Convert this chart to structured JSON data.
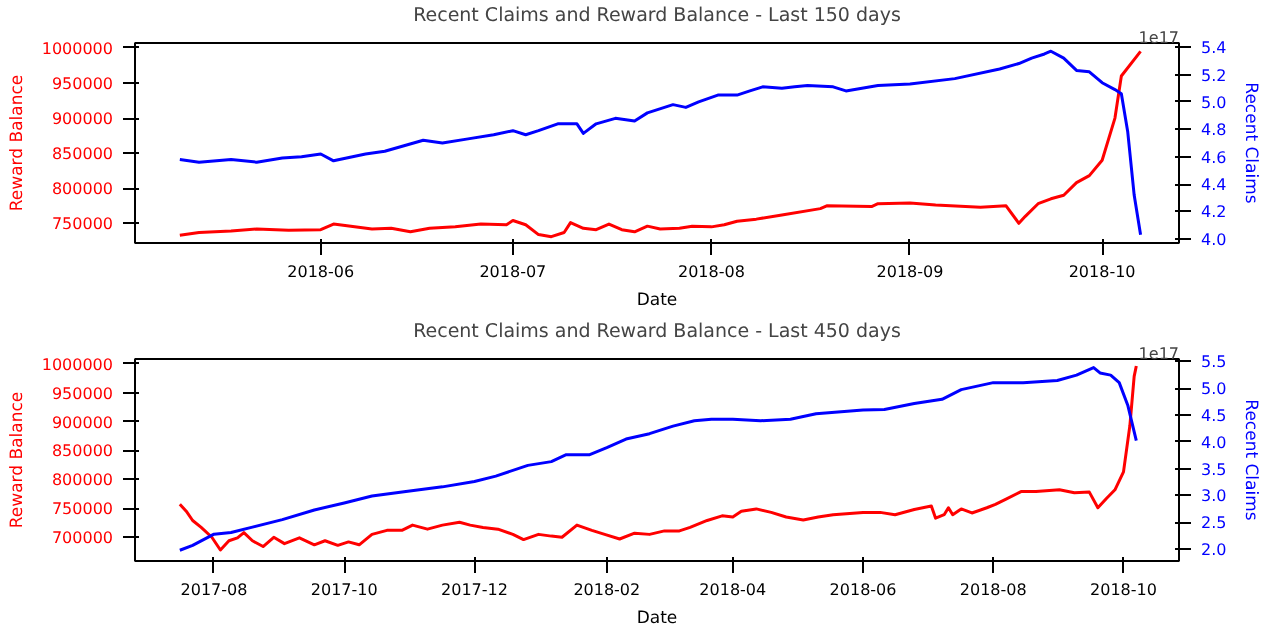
{
  "chart_data": [
    {
      "type": "line",
      "title": "Recent Claims and Reward Balance - Last 150 days",
      "xlabel": "Date",
      "ylabel": "Reward Balance",
      "y2label": "Recent Claims",
      "annotations": [
        "1e17"
      ],
      "grid": false,
      "xlim": [
        "2018-05-03",
        "2018-10-13"
      ],
      "xticks": [
        {
          "value": "2018-06-01",
          "label": "2018-06"
        },
        {
          "value": "2018-07-01",
          "label": "2018-07"
        },
        {
          "value": "2018-08-01",
          "label": "2018-08"
        },
        {
          "value": "2018-09-01",
          "label": "2018-09"
        },
        {
          "value": "2018-10-01",
          "label": "2018-10"
        }
      ],
      "ylim": [
        722000,
        1007000
      ],
      "yticks": [
        750000,
        800000,
        850000,
        900000,
        950000,
        1000000
      ],
      "y2lim": [
        3.97,
        5.43
      ],
      "y2ticks": [
        {
          "value": 4.0,
          "label": "4.0"
        },
        {
          "value": 4.2,
          "label": "4.2"
        },
        {
          "value": 4.4,
          "label": "4.4"
        },
        {
          "value": 4.6,
          "label": "4.6"
        },
        {
          "value": 4.8,
          "label": "4.8"
        },
        {
          "value": 5.0,
          "label": "5.0"
        },
        {
          "value": 5.2,
          "label": "5.2"
        },
        {
          "value": 5.4,
          "label": "5.4"
        }
      ],
      "series": [
        {
          "color": "#ff0000",
          "x": [
            "2018-05-10",
            "2018-05-13",
            "2018-05-18",
            "2018-05-22",
            "2018-05-27",
            "2018-06-01",
            "2018-06-03",
            "2018-06-09",
            "2018-06-12",
            "2018-06-15",
            "2018-06-18",
            "2018-06-22",
            "2018-06-26",
            "2018-06-30",
            "2018-07-01",
            "2018-07-03",
            "2018-07-05",
            "2018-07-07",
            "2018-07-09",
            "2018-07-10",
            "2018-07-12",
            "2018-07-14",
            "2018-07-16",
            "2018-07-18",
            "2018-07-20",
            "2018-07-22",
            "2018-07-24",
            "2018-07-27",
            "2018-07-29",
            "2018-08-01",
            "2018-08-03",
            "2018-08-05",
            "2018-08-08",
            "2018-08-12",
            "2018-08-18",
            "2018-08-19",
            "2018-08-26",
            "2018-08-27",
            "2018-09-01",
            "2018-09-05",
            "2018-09-12",
            "2018-09-16",
            "2018-09-18",
            "2018-09-19",
            "2018-09-21",
            "2018-09-23",
            "2018-09-25",
            "2018-09-27",
            "2018-09-29",
            "2018-10-01",
            "2018-10-03",
            "2018-10-04",
            "2018-10-07"
          ],
          "values": [
            733000,
            737000,
            739000,
            742000,
            740000,
            741000,
            749000,
            742000,
            743000,
            738000,
            743000,
            745000,
            749000,
            748000,
            754000,
            748000,
            734000,
            731000,
            737000,
            751000,
            743000,
            741000,
            749000,
            741000,
            738000,
            746000,
            742000,
            743000,
            746000,
            745000,
            748000,
            753000,
            756000,
            762000,
            771000,
            775000,
            774000,
            778000,
            779000,
            776000,
            773000,
            775000,
            750000,
            760000,
            778000,
            785000,
            790000,
            808000,
            818000,
            840000,
            900000,
            960000,
            995000
          ]
        },
        {
          "color": "#0000ff",
          "axis": "y2",
          "x": [
            "2018-05-10",
            "2018-05-13",
            "2018-05-18",
            "2018-05-22",
            "2018-05-26",
            "2018-05-29",
            "2018-06-01",
            "2018-06-03",
            "2018-06-08",
            "2018-06-11",
            "2018-06-14",
            "2018-06-17",
            "2018-06-20",
            "2018-06-24",
            "2018-06-28",
            "2018-07-01",
            "2018-07-03",
            "2018-07-05",
            "2018-07-08",
            "2018-07-11",
            "2018-07-12",
            "2018-07-14",
            "2018-07-17",
            "2018-07-20",
            "2018-07-22",
            "2018-07-26",
            "2018-07-28",
            "2018-07-30",
            "2018-08-02",
            "2018-08-05",
            "2018-08-07",
            "2018-08-09",
            "2018-08-12",
            "2018-08-14",
            "2018-08-16",
            "2018-08-20",
            "2018-08-22",
            "2018-08-27",
            "2018-09-01",
            "2018-09-08",
            "2018-09-15",
            "2018-09-18",
            "2018-09-20",
            "2018-09-22",
            "2018-09-23",
            "2018-09-25",
            "2018-09-27",
            "2018-09-29",
            "2018-10-01",
            "2018-10-03",
            "2018-10-04",
            "2018-10-05",
            "2018-10-06",
            "2018-10-07"
          ],
          "values": [
            4.58,
            4.56,
            4.58,
            4.56,
            4.59,
            4.6,
            4.62,
            4.57,
            4.62,
            4.64,
            4.68,
            4.72,
            4.7,
            4.73,
            4.76,
            4.79,
            4.76,
            4.79,
            4.84,
            4.84,
            4.77,
            4.84,
            4.88,
            4.86,
            4.92,
            4.98,
            4.96,
            5.0,
            5.05,
            5.05,
            5.08,
            5.11,
            5.1,
            5.11,
            5.12,
            5.11,
            5.08,
            5.12,
            5.13,
            5.17,
            5.24,
            5.28,
            5.32,
            5.35,
            5.37,
            5.32,
            5.23,
            5.22,
            5.14,
            5.09,
            5.06,
            4.78,
            4.32,
            4.03
          ]
        }
      ]
    },
    {
      "type": "line",
      "title": "Recent Claims and Reward Balance - Last 450 days",
      "xlabel": "Date",
      "ylabel": "Reward Balance",
      "y2label": "Recent Claims",
      "annotations": [
        "1e17"
      ],
      "grid": false,
      "xlim": [
        "2017-06-25",
        "2018-10-27"
      ],
      "xticks": [
        {
          "value": "2017-08-01",
          "label": "2017-08"
        },
        {
          "value": "2017-10-01",
          "label": "2017-10"
        },
        {
          "value": "2017-12-01",
          "label": "2017-12"
        },
        {
          "value": "2018-02-01",
          "label": "2018-02"
        },
        {
          "value": "2018-04-01",
          "label": "2018-04"
        },
        {
          "value": "2018-06-01",
          "label": "2018-06"
        },
        {
          "value": "2018-08-01",
          "label": "2018-08"
        },
        {
          "value": "2018-10-01",
          "label": "2018-10"
        }
      ],
      "ylim": [
        659000,
        1008000
      ],
      "yticks": [
        700000,
        750000,
        800000,
        850000,
        900000,
        950000,
        1000000
      ],
      "y2lim": [
        1.78,
        5.54
      ],
      "y2ticks": [
        {
          "value": 2.0,
          "label": "2.0"
        },
        {
          "value": 2.5,
          "label": "2.5"
        },
        {
          "value": 3.0,
          "label": "3.0"
        },
        {
          "value": 3.5,
          "label": "3.5"
        },
        {
          "value": 4.0,
          "label": "4.0"
        },
        {
          "value": 4.5,
          "label": "4.5"
        },
        {
          "value": 5.0,
          "label": "5.0"
        },
        {
          "value": 5.5,
          "label": "5.5"
        }
      ],
      "series": [
        {
          "color": "#ff0000",
          "x": [
            "2017-07-16",
            "2017-07-19",
            "2017-07-22",
            "2017-07-26",
            "2017-07-31",
            "2017-08-04",
            "2017-08-08",
            "2017-08-12",
            "2017-08-15",
            "2017-08-19",
            "2017-08-24",
            "2017-08-29",
            "2017-09-03",
            "2017-09-10",
            "2017-09-17",
            "2017-09-22",
            "2017-09-28",
            "2017-10-03",
            "2017-10-08",
            "2017-10-14",
            "2017-10-21",
            "2017-10-28",
            "2017-11-02",
            "2017-11-09",
            "2017-11-16",
            "2017-11-24",
            "2017-11-29",
            "2017-12-05",
            "2017-12-12",
            "2017-12-19",
            "2017-12-24",
            "2017-12-31",
            "2018-01-06",
            "2018-01-11",
            "2018-01-18",
            "2018-01-25",
            "2018-01-31",
            "2018-02-07",
            "2018-02-14",
            "2018-02-21",
            "2018-02-28",
            "2018-03-07",
            "2018-03-12",
            "2018-03-20",
            "2018-03-27",
            "2018-04-01",
            "2018-04-05",
            "2018-04-12",
            "2018-04-19",
            "2018-04-26",
            "2018-05-04",
            "2018-05-11",
            "2018-05-18",
            "2018-06-01",
            "2018-06-09",
            "2018-06-16",
            "2018-06-25",
            "2018-07-03",
            "2018-07-05",
            "2018-07-09",
            "2018-07-11",
            "2018-07-13",
            "2018-07-17",
            "2018-07-22",
            "2018-07-29",
            "2018-08-02",
            "2018-08-07",
            "2018-08-14",
            "2018-08-21",
            "2018-09-01",
            "2018-09-08",
            "2018-09-15",
            "2018-09-19",
            "2018-09-23",
            "2018-09-27",
            "2018-10-01",
            "2018-10-04",
            "2018-10-06",
            "2018-10-07"
          ],
          "values": [
            757000,
            745000,
            729000,
            717000,
            700000,
            678000,
            694000,
            699000,
            708000,
            694000,
            684000,
            700000,
            689000,
            699000,
            687000,
            694000,
            686000,
            692000,
            687000,
            705000,
            712000,
            712000,
            721000,
            714000,
            721000,
            726000,
            721000,
            717000,
            714000,
            705000,
            696000,
            705000,
            702000,
            700000,
            721000,
            712000,
            705000,
            697000,
            707000,
            705000,
            711000,
            711000,
            717000,
            729000,
            737000,
            735000,
            745000,
            749000,
            743000,
            735000,
            730000,
            735000,
            739000,
            743000,
            743000,
            739000,
            748000,
            754000,
            733000,
            739000,
            751000,
            739000,
            749000,
            742000,
            751000,
            757000,
            766000,
            779000,
            779000,
            782000,
            777000,
            778000,
            751000,
            767000,
            782000,
            813000,
            893000,
            978000,
            996000
          ]
        },
        {
          "color": "#0000ff",
          "axis": "y2",
          "x": [
            "2017-07-16",
            "2017-07-22",
            "2017-08-01",
            "2017-08-09",
            "2017-08-19",
            "2017-09-02",
            "2017-09-17",
            "2017-10-01",
            "2017-10-14",
            "2017-10-29",
            "2017-11-16",
            "2017-12-01",
            "2017-12-11",
            "2017-12-26",
            "2018-01-06",
            "2018-01-13",
            "2018-01-24",
            "2018-02-01",
            "2018-02-10",
            "2018-02-21",
            "2018-03-04",
            "2018-03-14",
            "2018-03-22",
            "2018-04-01",
            "2018-04-14",
            "2018-04-28",
            "2018-05-10",
            "2018-06-01",
            "2018-06-11",
            "2018-06-25",
            "2018-07-08",
            "2018-07-17",
            "2018-08-01",
            "2018-08-15",
            "2018-08-31",
            "2018-09-09",
            "2018-09-17",
            "2018-09-20",
            "2018-09-25",
            "2018-09-29",
            "2018-10-03",
            "2018-10-07"
          ],
          "values": [
            1.98,
            2.07,
            2.28,
            2.31,
            2.41,
            2.55,
            2.73,
            2.86,
            2.99,
            3.07,
            3.16,
            3.26,
            3.36,
            3.56,
            3.63,
            3.76,
            3.76,
            3.89,
            4.05,
            4.15,
            4.29,
            4.39,
            4.42,
            4.42,
            4.39,
            4.42,
            4.52,
            4.59,
            4.6,
            4.71,
            4.79,
            4.97,
            5.1,
            5.1,
            5.14,
            5.24,
            5.38,
            5.28,
            5.24,
            5.1,
            4.68,
            4.02
          ]
        }
      ]
    }
  ]
}
